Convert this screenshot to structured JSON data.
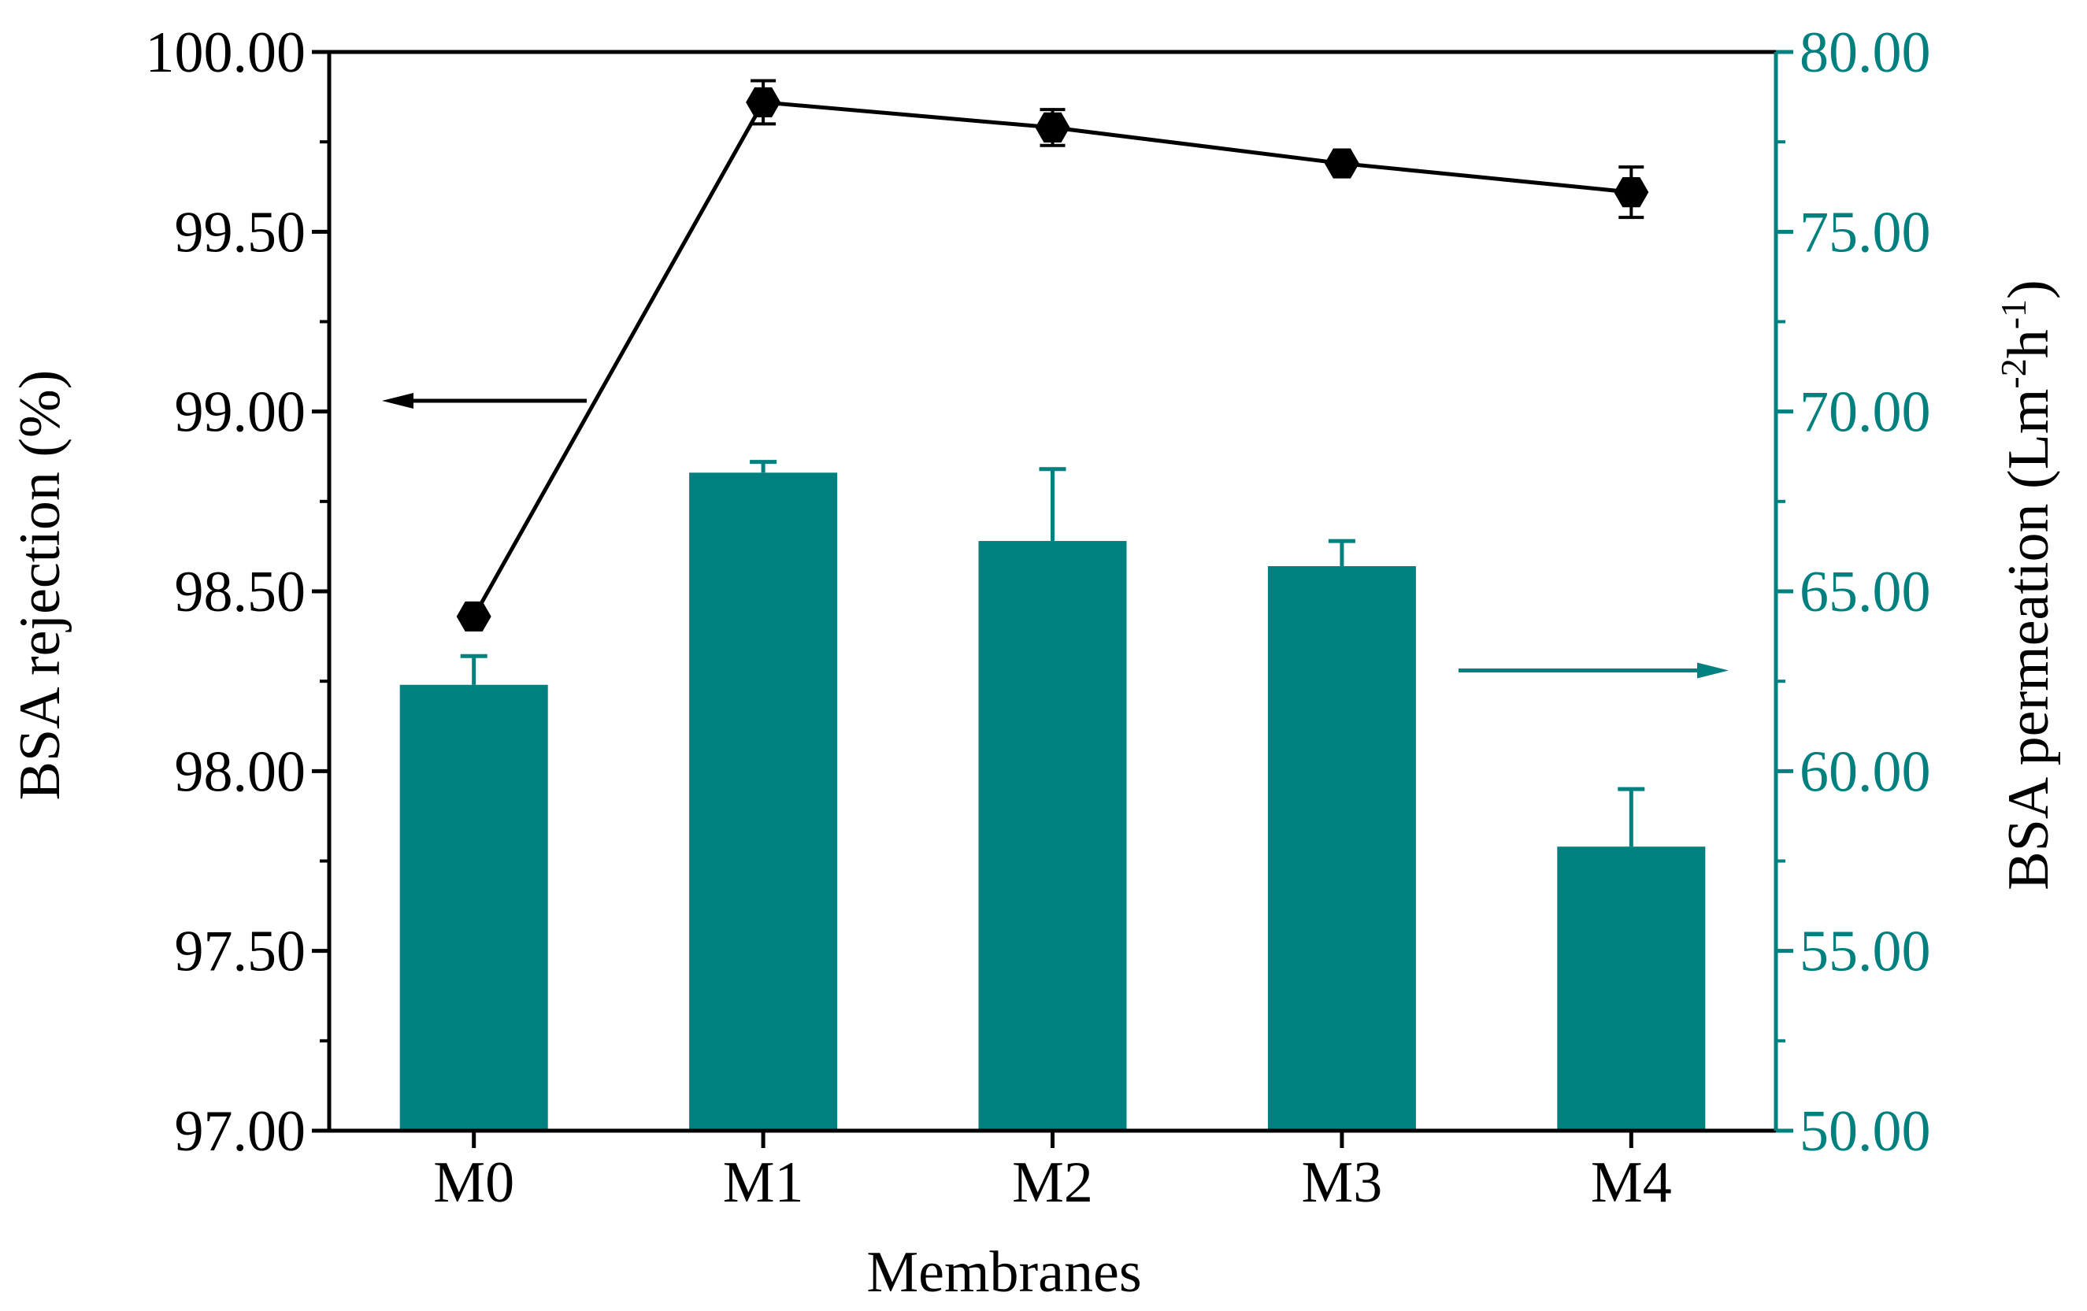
{
  "chart_data": {
    "type": "bar+line",
    "xlabel": "Membranes",
    "categories": [
      "M0",
      "M1",
      "M2",
      "M3",
      "M4"
    ],
    "left_axis": {
      "label": "BSA rejection (%)",
      "ylim": [
        97.0,
        100.0
      ],
      "ticks": [
        "97.00",
        "97.50",
        "98.00",
        "98.50",
        "99.00",
        "99.50",
        "100.00"
      ],
      "color": "#000000"
    },
    "right_axis": {
      "label_main": "BSA permeation (Lm",
      "label_sup1": "-2",
      "label_mid": "h",
      "label_sup2": "-1",
      "label_end": ")",
      "ylim": [
        50.0,
        80.0
      ],
      "ticks": [
        "50.00",
        "55.00",
        "60.00",
        "65.00",
        "70.00",
        "75.00",
        "80.00"
      ],
      "color": "#00807f"
    },
    "series": [
      {
        "name": "BSA permeation",
        "kind": "bar",
        "axis": "right",
        "values": [
          62.4,
          68.3,
          66.4,
          65.7,
          57.9
        ],
        "errors": [
          0.8,
          0.3,
          2.0,
          0.7,
          1.6
        ],
        "color": "#00807f"
      },
      {
        "name": "BSA rejection",
        "kind": "line",
        "axis": "left",
        "values": [
          98.43,
          99.86,
          99.79,
          99.69,
          99.61
        ],
        "errors": [
          0.0,
          0.06,
          0.05,
          0.0,
          0.07
        ],
        "color": "#000000"
      }
    ]
  }
}
